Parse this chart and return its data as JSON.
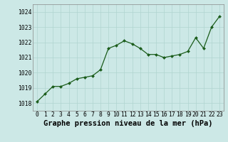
{
  "x": [
    0,
    1,
    2,
    3,
    4,
    5,
    6,
    7,
    8,
    9,
    10,
    11,
    12,
    13,
    14,
    15,
    16,
    17,
    18,
    19,
    20,
    21,
    22,
    23
  ],
  "y": [
    1018.1,
    1018.6,
    1019.1,
    1019.1,
    1019.3,
    1019.6,
    1019.7,
    1019.8,
    1020.2,
    1021.6,
    1021.8,
    1022.1,
    1021.9,
    1021.6,
    1021.2,
    1021.2,
    1021.0,
    1021.1,
    1021.2,
    1021.4,
    1022.3,
    1021.6,
    1023.0,
    1023.7
  ],
  "ylim": [
    1017.5,
    1024.5
  ],
  "yticks": [
    1018,
    1019,
    1020,
    1021,
    1022,
    1023,
    1024
  ],
  "xticks": [
    0,
    1,
    2,
    3,
    4,
    5,
    6,
    7,
    8,
    9,
    10,
    11,
    12,
    13,
    14,
    15,
    16,
    17,
    18,
    19,
    20,
    21,
    22,
    23
  ],
  "xlabel": "Graphe pression niveau de la mer (hPa)",
  "line_color": "#1a5c1a",
  "marker_color": "#1a5c1a",
  "bg_color": "#cce8e6",
  "grid_color": "#b0d4d0",
  "tick_label_fontsize": 5.8,
  "xlabel_fontsize": 7.5,
  "title": ""
}
